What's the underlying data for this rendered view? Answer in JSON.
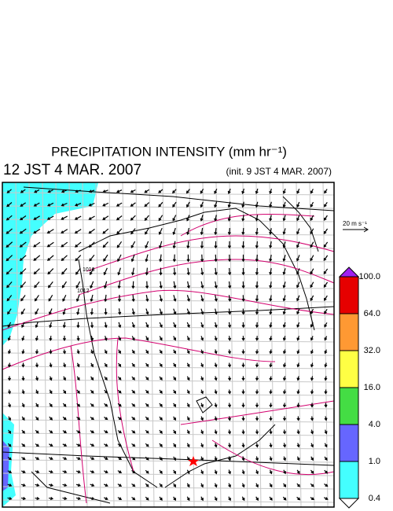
{
  "header": {
    "title": "PRECIPITATION INTENSITY (mm hr⁻¹)",
    "valid_time": "12 JST 4 MAR. 2007",
    "init_time": "(init. 9 JST 4 MAR. 2007)"
  },
  "map": {
    "isobar_labels": [
      "1016",
      "1012"
    ],
    "wind_scale_label": "20 m s⁻¹"
  },
  "colorbar": {
    "levels": [
      "100.0",
      "64.0",
      "32.0",
      "16.0",
      "4.0",
      "1.0",
      "0.4"
    ],
    "colors": [
      "#a020f0",
      "#e60000",
      "#ff9933",
      "#ffff44",
      "#44dd44",
      "#6666ff",
      "#44ffff",
      "#ffffff"
    ]
  }
}
